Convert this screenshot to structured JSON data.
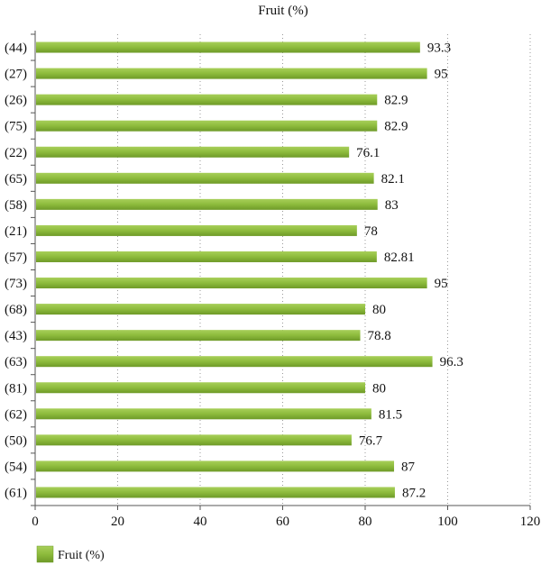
{
  "chart_data": {
    "type": "bar",
    "orientation": "horizontal",
    "title": "Fruit (%)",
    "categories": [
      "(44)",
      "(27)",
      "(26)",
      "(75)",
      "(22)",
      "(65)",
      "(58)",
      "(21)",
      "(57)",
      "(73)",
      "(68)",
      "(43)",
      "(63)",
      "(81)",
      "(62)",
      "(50)",
      "(54)",
      "(61)"
    ],
    "series": [
      {
        "name": "Fruit (%)",
        "values": [
          93.3,
          95,
          82.9,
          82.9,
          76.1,
          82.1,
          83,
          78,
          82.81,
          95,
          80,
          78.8,
          96.3,
          80,
          81.5,
          76.7,
          87,
          87.2
        ],
        "value_labels": [
          "93.3",
          "95",
          "82.9",
          "82.9",
          "76.1",
          "82.1",
          "83",
          "78",
          "82.81",
          "95",
          "80",
          "78.8",
          "96.3",
          "80",
          "81.5",
          "76.7",
          "87",
          "87.2"
        ]
      }
    ],
    "xlim": [
      0,
      120
    ],
    "xticks": [
      0,
      20,
      40,
      60,
      80,
      100,
      120
    ],
    "xlabel": "",
    "ylabel": "",
    "grid": "vertical dotted",
    "legend": "bottom-left",
    "colors": {
      "bar": "#8dbb3c",
      "bar_light": "#a8cf5a",
      "bar_dark": "#6e9a28",
      "grid": "#999999",
      "axis": "#555555"
    }
  }
}
